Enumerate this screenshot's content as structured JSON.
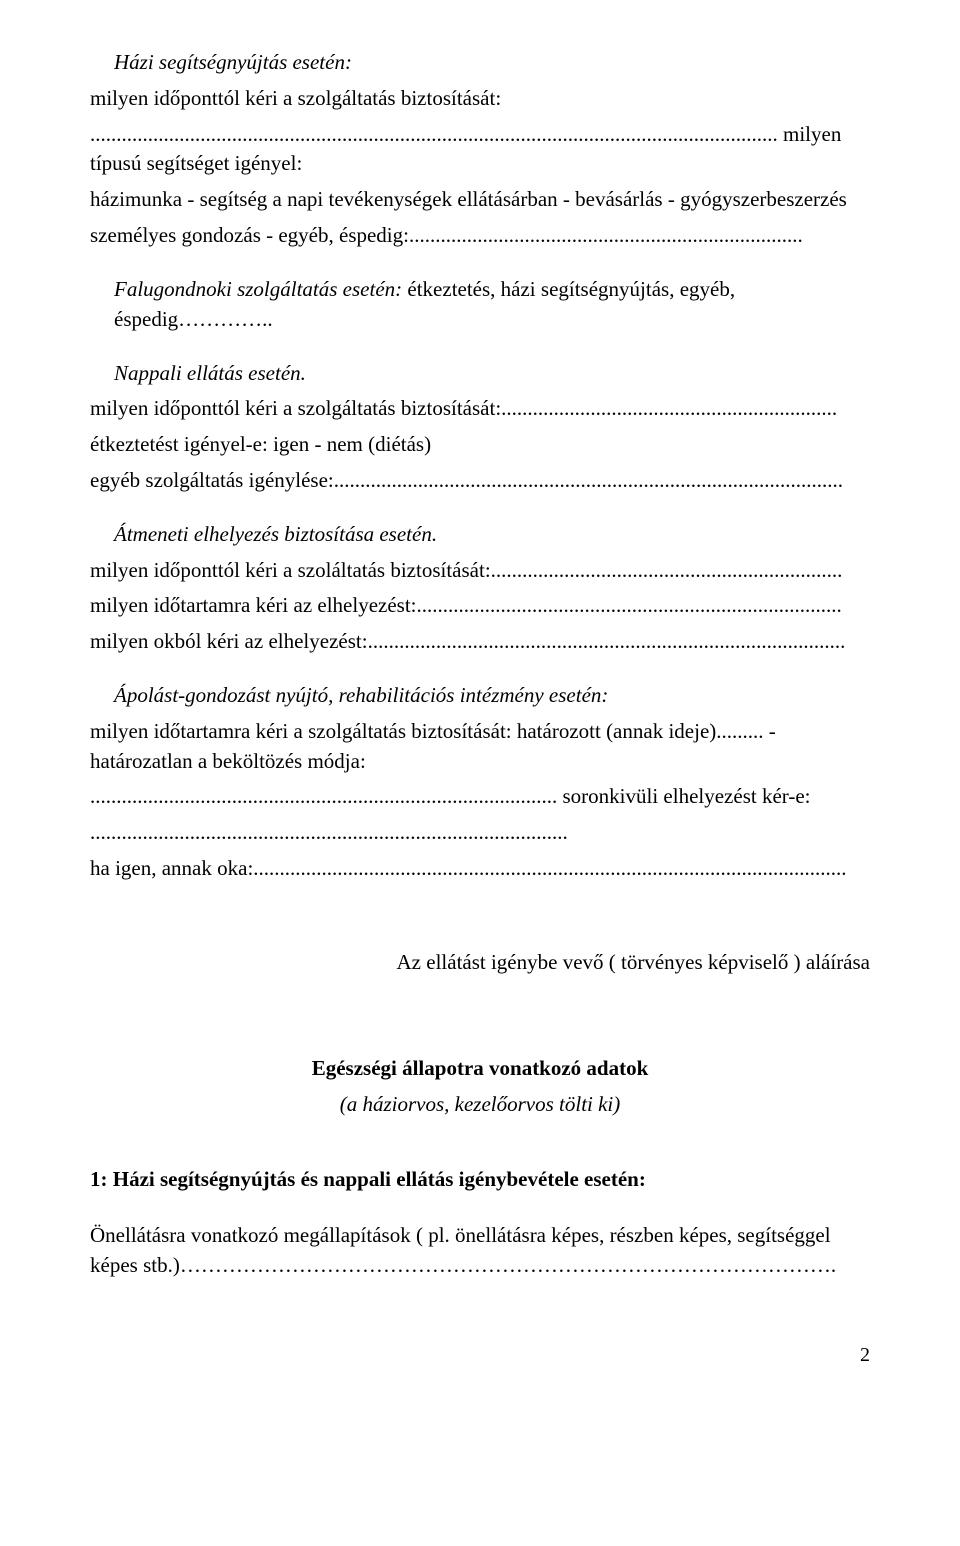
{
  "section1": {
    "title": "Házi segítségnyújtás esetén:",
    "line1": "milyen időponttól kéri a szolgáltatás biztosítását:",
    "line2_pre": "...................................................................................................................................",
    "line2": "milyen típusú segítséget igényel:",
    "body1": "házimunka - segítség a napi tevékenységek ellátásárban - bevásárlás - gyógyszerbeszerzés",
    "body2": "személyes gondozás - egyéb, éspedig:..........................................................................."
  },
  "section2": {
    "title_pre": "Falugondnoki szolgáltatás esetén:",
    "title_rest": " étkeztetés, házi segítségnyújtás, egyéb, éspedig………….."
  },
  "section3": {
    "title": "Nappali ellátás esetén.",
    "line1": "milyen időponttól kéri a szolgáltatás biztosítását:................................................................",
    "line2": "étkeztetést igényel-e: igen - nem (diétás)",
    "line3": "egyéb szolgáltatás igénylése:................................................................................................."
  },
  "section4": {
    "title": "Átmeneti elhelyezés biztosítása esetén.",
    "line1": "milyen időponttól kéri a szoláltatás biztosítását:...................................................................",
    "line2": "milyen időtartamra kéri az elhelyezést:.................................................................................",
    "line3": "milyen okból kéri az elhelyezést:..........................................................................................."
  },
  "section5": {
    "title": "Ápolást-gondozást nyújtó, rehabilitációs intézmény esetén:",
    "line1": "milyen időtartamra kéri a szolgáltatás biztosítását: határozott (annak ideje)......... - határozatlan a beköltözés módja:",
    "line2": "......................................................................................... soronkivüli elhelyezést kér-e:",
    "line3": "...........................................................................................",
    "line4": "ha igen, annak oka:................................................................................................................."
  },
  "signature": "Az ellátást igénybe vevő ( törvényes képviselő ) aláírása",
  "centerHeader": {
    "line1": "Egészségi állapotra vonatkozó adatok",
    "line2": "(a háziorvos, kezelőorvos tölti ki)"
  },
  "section6": {
    "title": "1: Házi segítségnyújtás és nappali ellátás igénybevétele esetén:",
    "line1": "Önellátásra vonatkozó megállapítások ( pl. önellátásra képes, részben képes, segítséggel képes stb.)…………………………………………………………………………………."
  },
  "pageNumber": "2"
}
